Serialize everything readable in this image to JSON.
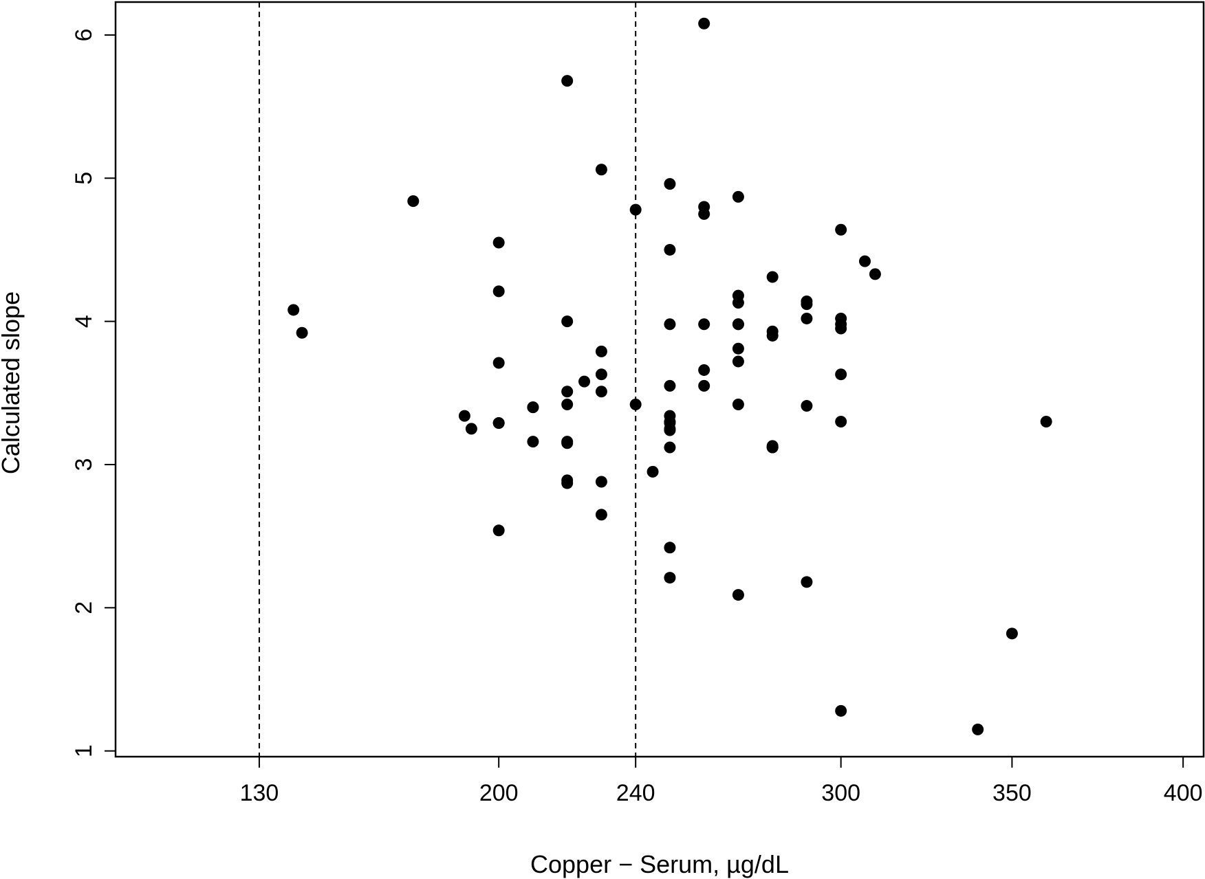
{
  "chart_data": {
    "type": "scatter",
    "title": "",
    "xlabel": "Copper − Serum, µg/dL",
    "ylabel": "Calculated slope",
    "xlim": [
      88,
      406
    ],
    "ylim": [
      0.96,
      6.23
    ],
    "xticks": [
      130,
      200,
      240,
      300,
      350,
      400
    ],
    "xtick_labels": [
      "130",
      "200",
      "240",
      "300",
      "350",
      "400"
    ],
    "yticks": [
      1,
      2,
      3,
      4,
      5,
      6
    ],
    "ytick_labels": [
      "1",
      "2",
      "3",
      "4",
      "5",
      "6"
    ],
    "reference_lines_x": [
      130,
      240
    ],
    "grid": false,
    "legend": "none",
    "point_color": "#000000",
    "series": [
      {
        "x": [
          140,
          142.5,
          175,
          190,
          192,
          200,
          200,
          200,
          200,
          200,
          200,
          210,
          210,
          210,
          220,
          220,
          220,
          220,
          220,
          220,
          220,
          220,
          225,
          230,
          230,
          230,
          230,
          230,
          230,
          240,
          240,
          245,
          250,
          250,
          250,
          250,
          250,
          250,
          250,
          250,
          250,
          250,
          250,
          250,
          260,
          260,
          260,
          260,
          260,
          260,
          270,
          270,
          270,
          270,
          270,
          270,
          270,
          270,
          270,
          280,
          280,
          280,
          280,
          280,
          280,
          290,
          290,
          290,
          290,
          290,
          300,
          300,
          300,
          300,
          300,
          300,
          300,
          307,
          310,
          340,
          350,
          360
        ],
        "y": [
          4.08,
          3.92,
          4.84,
          3.34,
          3.25,
          4.55,
          4.21,
          3.71,
          3.29,
          2.54,
          3.29,
          3.4,
          3.16,
          3.4,
          5.68,
          4.0,
          3.51,
          3.42,
          3.16,
          3.15,
          2.89,
          2.87,
          3.58,
          5.06,
          3.79,
          3.63,
          3.51,
          2.88,
          2.65,
          4.78,
          3.42,
          2.95,
          4.96,
          4.5,
          3.98,
          3.55,
          3.34,
          3.29,
          3.24,
          3.12,
          2.42,
          2.21,
          3.3,
          3.25,
          6.08,
          4.8,
          4.75,
          3.98,
          3.66,
          3.55,
          4.87,
          4.18,
          4.13,
          3.98,
          3.81,
          3.72,
          3.42,
          2.09,
          3.98,
          4.31,
          3.93,
          3.9,
          3.13,
          3.12,
          3.12,
          4.14,
          4.12,
          4.02,
          3.41,
          2.18,
          4.64,
          4.02,
          3.98,
          3.95,
          3.63,
          3.3,
          1.28,
          4.42,
          4.33,
          1.15,
          1.82,
          3.3
        ]
      }
    ]
  }
}
